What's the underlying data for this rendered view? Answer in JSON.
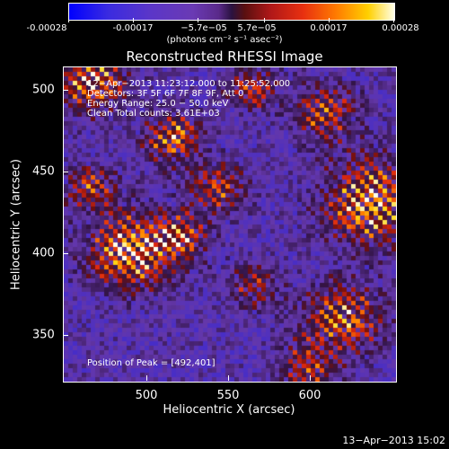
{
  "colorbar": {
    "ticks": [
      "-0.00028",
      "-0.00017",
      "−5.7e−05",
      "5.7e−05",
      "0.00017",
      "0.00028"
    ],
    "units": "(photons cm⁻² s⁻¹ asec⁻²)"
  },
  "plot": {
    "title": "Reconstructed RHESSI Image",
    "annotations": [
      "12−Apr−2013 11:23:12.000 to 11:25:52.000",
      "Detectors: 3F 5F 6F 7F 8F 9F, Att 0",
      "Energy Range: 25.0 − 50.0 keV",
      "Clean    Total counts: 3.61E+03"
    ],
    "peak_label": "Position of Peak = [492,401]",
    "xlabel": "Heliocentric X (arcsec)",
    "ylabel": "Heliocentric Y (arcsec)",
    "xticks": [
      "500",
      "550",
      "600"
    ],
    "yticks": [
      "500",
      "450",
      "400",
      "350"
    ]
  },
  "chart_data": {
    "type": "heatmap",
    "title": "Reconstructed RHESSI Image",
    "xlabel": "Heliocentric X (arcsec)",
    "ylabel": "Heliocentric Y (arcsec)",
    "xlim": [
      456,
      640
    ],
    "ylim": [
      320,
      512
    ],
    "zlim": [
      -0.00028,
      0.00028
    ],
    "peak": [
      492,
      401
    ],
    "colors": {
      "min": "#0000ff",
      "mid": "#2a1240",
      "max": "#ffffe8",
      "background": "#000000"
    }
  },
  "footer": {
    "datestamp": "13−Apr−2013 15:02"
  }
}
